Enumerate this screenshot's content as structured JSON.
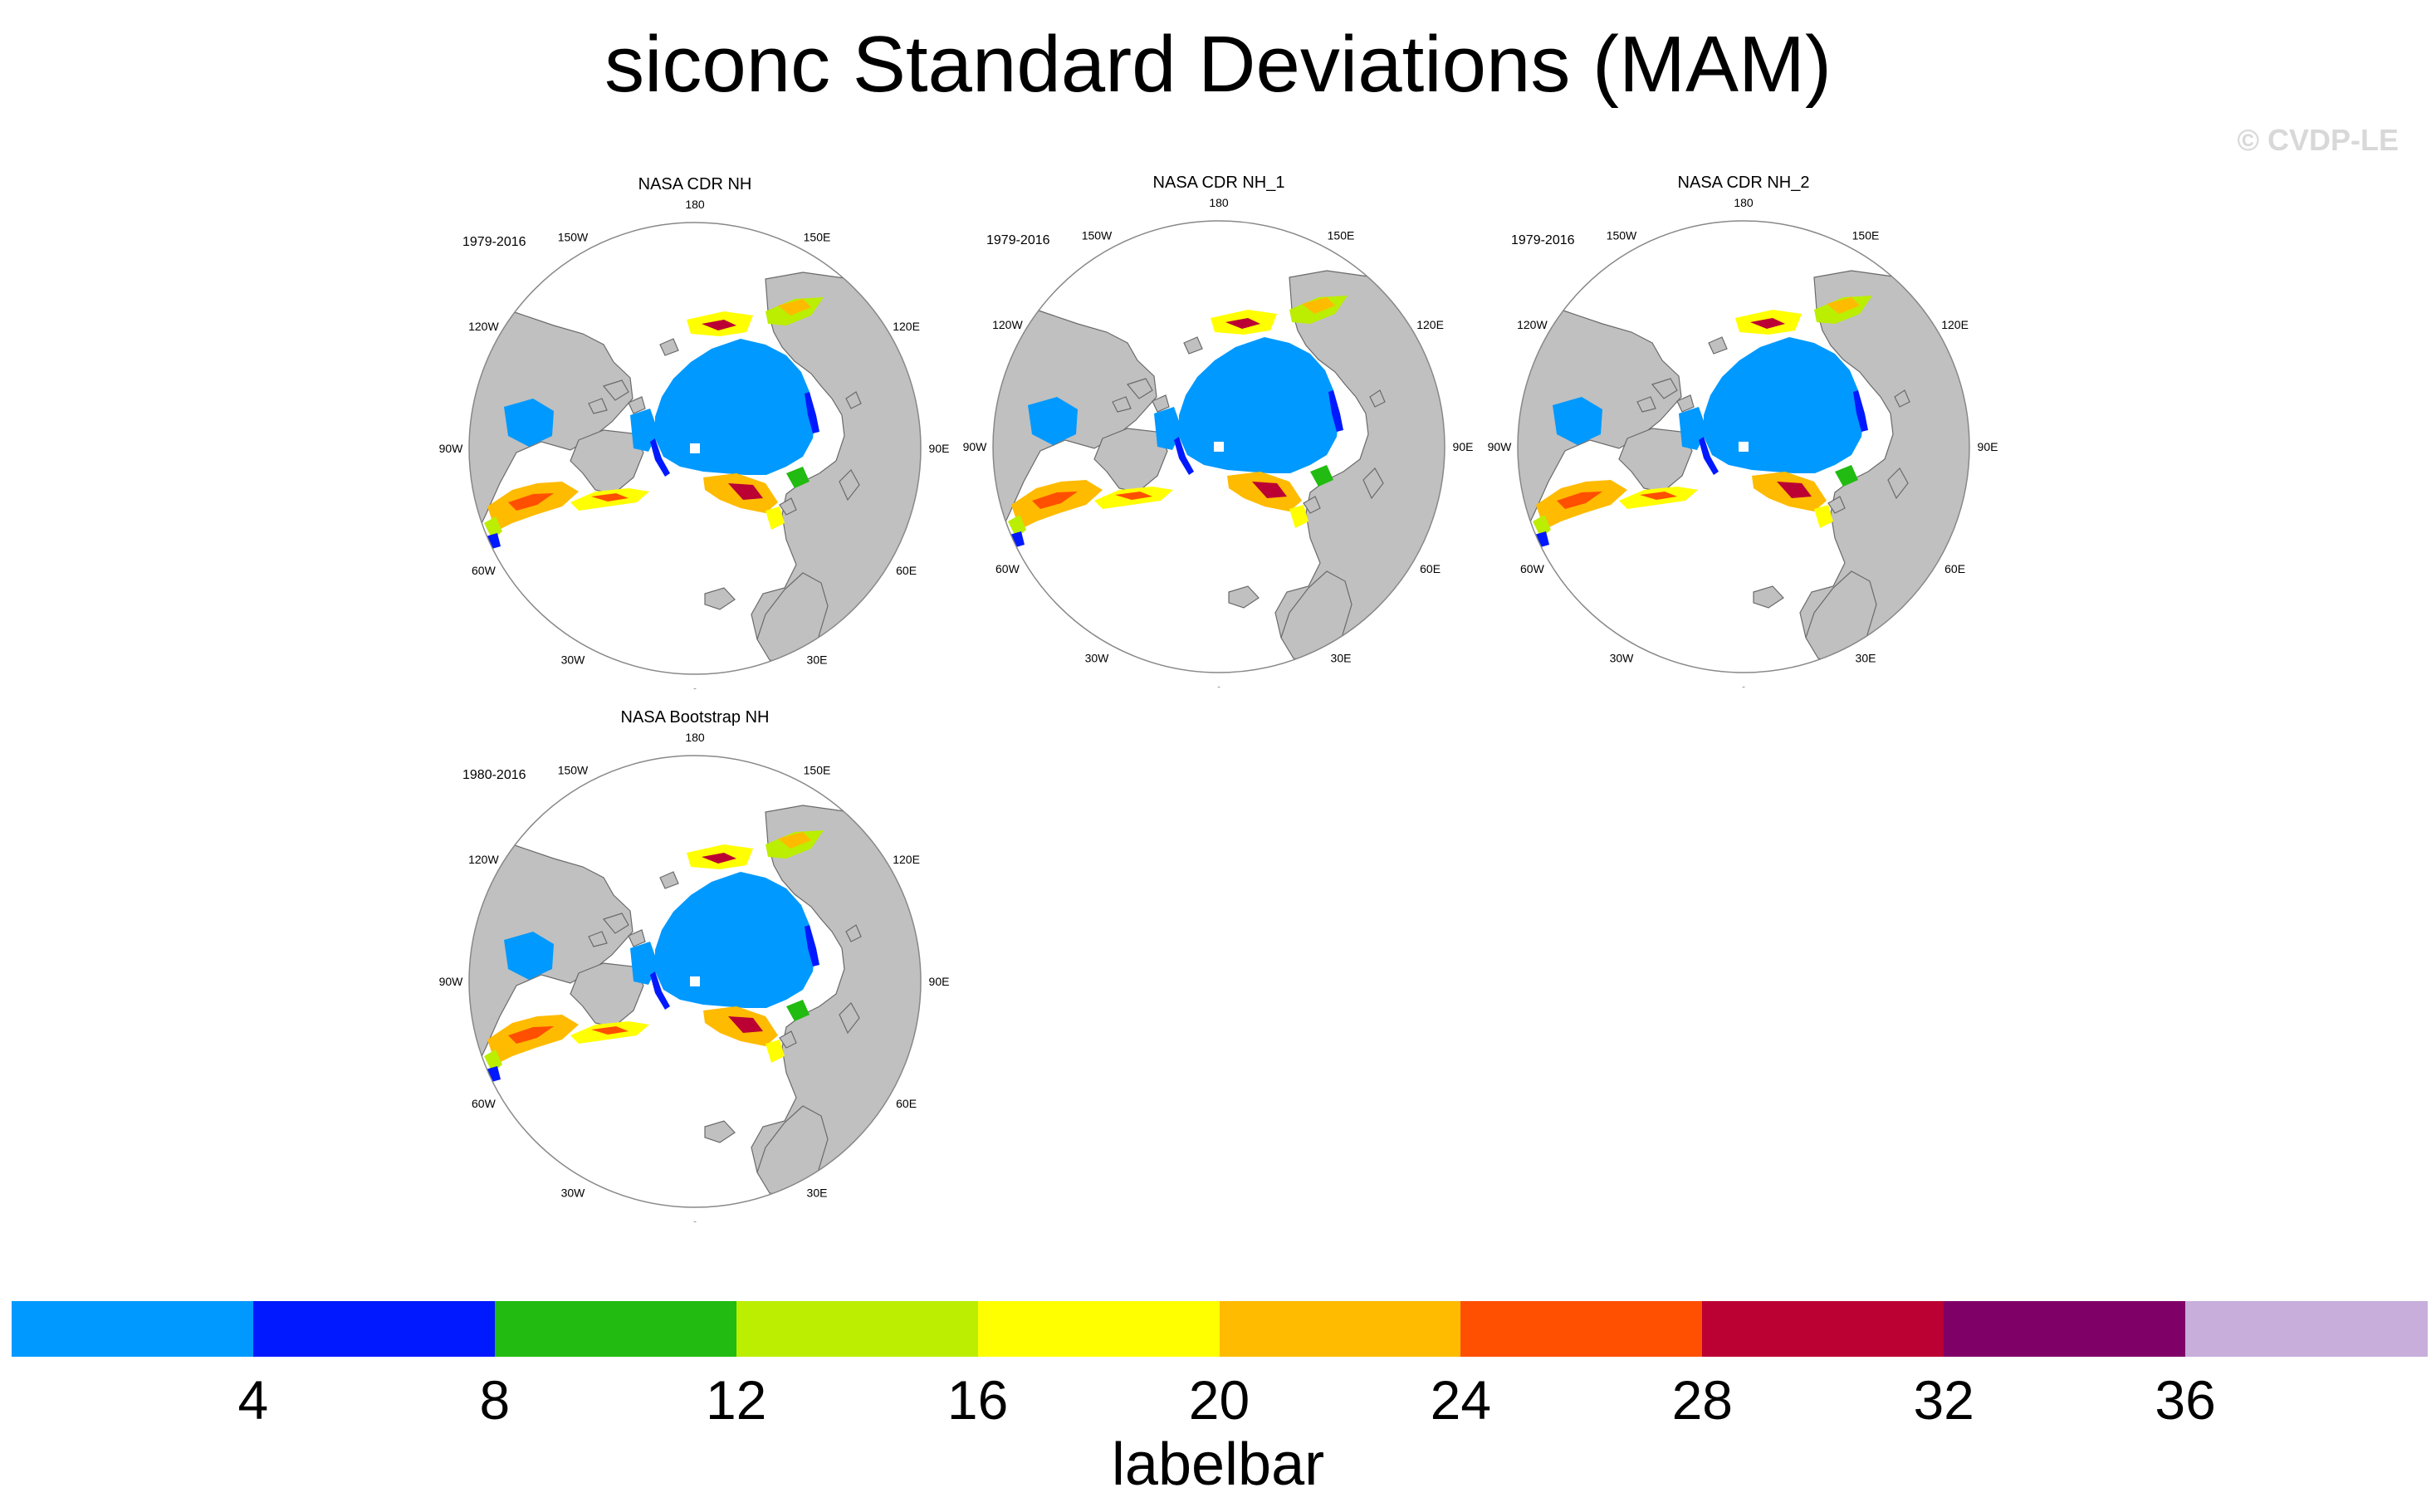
{
  "title": "siconc Standard Deviations (MAM)",
  "watermark": "© CVDP-LE",
  "longitude_labels": [
    "180",
    "150E",
    "120E",
    "90E",
    "60E",
    "30E",
    "0",
    "30W",
    "60W",
    "90W",
    "120W",
    "150W"
  ],
  "panels": [
    {
      "title": "NASA CDR NH",
      "period": "1979-2016"
    },
    {
      "title": "NASA CDR NH_1",
      "period": "1979-2016"
    },
    {
      "title": "NASA CDR NH_2",
      "period": "1979-2016"
    },
    {
      "title": "NASA Bootstrap NH",
      "period": "1980-2016"
    }
  ],
  "labelbar": {
    "title": "labelbar",
    "ticks": [
      "4",
      "8",
      "12",
      "16",
      "20",
      "24",
      "28",
      "32",
      "36"
    ],
    "colors": [
      "#0099ff",
      "#0019ff",
      "#22bb11",
      "#bbee00",
      "#ffff00",
      "#ffbb00",
      "#ff4f00",
      "#bb0033",
      "#7f0066",
      "#c7aedb"
    ]
  },
  "colors": {
    "land": "#c0c0c0",
    "coastline": "#6a6a6a",
    "low_variability": "#0099ff"
  }
}
